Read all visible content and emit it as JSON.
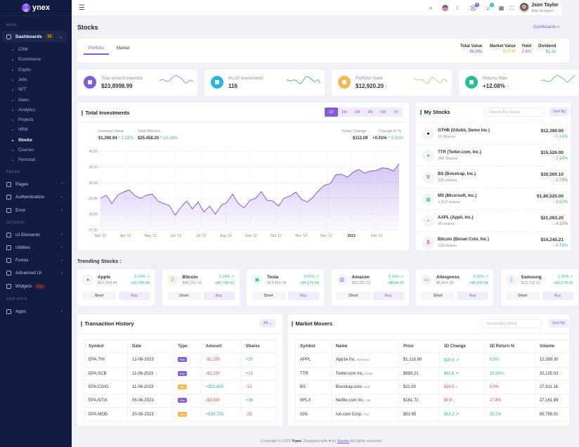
{
  "brand": {
    "name": "ynex"
  },
  "sidebar": {
    "sections": {
      "main": "MAIN",
      "pages": "PAGES",
      "general": "GENERAL",
      "webapps": "WEB APPS"
    },
    "dashboards": {
      "label": "Dashboards",
      "badge": "12"
    },
    "sub_items": [
      "CRM",
      "Ecommerce",
      "Crypto",
      "Jobs",
      "NFT",
      "Sales",
      "Analytics",
      "Projects",
      "HRM",
      "Stocks",
      "Courses",
      "Personal"
    ],
    "active_sub": "Stocks",
    "pages_items": [
      {
        "label": "Pages",
        "icon": "file-icon"
      },
      {
        "label": "Authentication",
        "icon": "fingerprint-icon"
      },
      {
        "label": "Error",
        "icon": "warning-icon"
      }
    ],
    "general_items": [
      {
        "label": "Ui Elements",
        "icon": "layout-icon"
      },
      {
        "label": "Utilities",
        "icon": "tools-icon"
      },
      {
        "label": "Forms",
        "icon": "form-icon"
      },
      {
        "label": "Advanced Ui",
        "icon": "layers-icon"
      },
      {
        "label": "Widgets",
        "icon": "gift-icon",
        "badge": "Hot"
      }
    ],
    "webapps_items": [
      {
        "label": "Apps",
        "icon": "grid-icon"
      }
    ]
  },
  "header": {
    "cart_count": "5",
    "notif_count": "5",
    "user": {
      "name": "Json Taylor",
      "role": "Web Designer"
    }
  },
  "page": {
    "title": "Stocks",
    "breadcrumb": "Dashboards"
  },
  "tabs": {
    "items": [
      "Portfolio",
      "Market"
    ],
    "active": "Portfolio"
  },
  "summary": [
    {
      "label": "Total Value",
      "value": "$8.89k",
      "color": "#845adf"
    },
    {
      "label": "Market Value",
      "value": "$15.9k",
      "color": "#f5b849"
    },
    {
      "label": "Yield",
      "value": "3.4%",
      "color": "#e6533c"
    },
    {
      "label": "Dividend",
      "value": "$1.3k",
      "color": "#23b7e5"
    }
  ],
  "stats": [
    {
      "label": "Total amount Invested",
      "value": "$23,8998.99",
      "color": "#845adf",
      "spark": "#a78bfa"
    },
    {
      "label": "No Of Investments",
      "value": "116",
      "color": "#23b7e5",
      "spark": "#4fb3c8"
    },
    {
      "label": "Portfolio Value",
      "value": "$12,920.20",
      "trend": "↑",
      "color": "#f5b849",
      "spark": "#e3c07a"
    },
    {
      "label": "Returns Rate",
      "value": "+12.08%",
      "trend": "↑",
      "color": "#26bf94",
      "spark": "#6cc4a7"
    }
  ],
  "investments": {
    "title": "Total Investments",
    "timeframes": [
      "1D",
      "1W",
      "1M",
      "3M",
      "6M",
      "1Y"
    ],
    "active_tf": "1D",
    "invested": {
      "label": "Invested Value",
      "value": "$1,290.94",
      "change": "^ 1.22%"
    },
    "returns": {
      "label": "Total Returns",
      "value": "$25,458.20",
      "change": "^ 10.14%"
    },
    "today": {
      "label": "Today Change",
      "value": "$112.09"
    },
    "pct": {
      "label": "Change In %",
      "value": "+0.01%",
      "change": "^ 0.21%"
    }
  },
  "chart_data": {
    "type": "area",
    "ylim": [
      27,
      42
    ],
    "yticks": [
      "27.00",
      "30.00",
      "33.00",
      "36.00",
      "39.00",
      "42.00"
    ],
    "xticks": [
      "Mar '12",
      "Apr '12",
      "May '12",
      "Jun '12",
      "Jul '12",
      "Aug '12",
      "Sep '12",
      "Oct '12",
      "Nov '12",
      "Dec '12",
      "2013",
      "Feb '13"
    ],
    "grid": true,
    "color": "#845adf",
    "x": [
      "2012-03-01",
      "2012-03-08",
      "2012-03-15",
      "2012-03-22",
      "2012-03-29",
      "2012-04-05",
      "2012-04-12",
      "2012-04-19",
      "2012-04-26",
      "2012-05-03",
      "2012-05-10",
      "2012-05-17",
      "2012-05-24",
      "2012-05-31",
      "2012-06-07",
      "2012-06-14",
      "2012-06-21",
      "2012-06-28",
      "2012-07-05",
      "2012-07-12",
      "2012-07-19",
      "2012-07-26",
      "2012-08-02",
      "2012-08-09",
      "2012-08-16",
      "2012-08-23",
      "2012-08-30",
      "2012-09-06",
      "2012-09-13",
      "2012-09-20",
      "2012-09-27",
      "2012-10-04",
      "2012-10-11",
      "2012-10-18",
      "2012-10-25",
      "2012-11-01",
      "2012-11-08",
      "2012-11-15",
      "2012-11-22",
      "2012-11-29",
      "2012-12-06",
      "2012-12-13",
      "2012-12-20",
      "2012-12-27",
      "2013-01-03",
      "2013-01-10",
      "2013-01-17",
      "2013-01-24",
      "2013-01-31",
      "2013-02-07",
      "2013-02-14",
      "2013-02-21",
      "2013-02-28"
    ],
    "y": [
      33.0,
      33.6,
      32.0,
      33.6,
      34.2,
      34.6,
      33.5,
      33.0,
      33.6,
      33.8,
      32.5,
      32.0,
      31.6,
      29.8,
      31.3,
      32.5,
      31.0,
      32.3,
      30.4,
      31.5,
      30.0,
      31.6,
      32.2,
      33.8,
      32.0,
      31.2,
      32.6,
      33.0,
      34.3,
      32.6,
      32.5,
      31.5,
      33.1,
      33.4,
      34.2,
      32.8,
      32.3,
      33.2,
      34.5,
      35.5,
      35.8,
      37.5,
      37.6,
      37.0,
      38.0,
      38.5,
      37.8,
      38.2,
      38.3,
      38.8,
      38.7,
      38.2,
      39.6
    ]
  },
  "my_stocks": {
    "title": "My Stocks",
    "search_placeholder": "Search Any Stock",
    "sort_label": "Sort By",
    "items": [
      {
        "name": "GTHB (Gituhb, Demo Inc.)",
        "shares": "16 Shares",
        "price": "$12,390.00",
        "change": "↑ 0.14%",
        "dir": "up",
        "icon": "github-icon",
        "glyph": "●",
        "color": "#111"
      },
      {
        "name": "TTR (Twiter.com, Inc.)",
        "shares": "289 Shares",
        "price": "$15,526.00",
        "change": "↑ 2.14%",
        "dir": "up",
        "icon": "twitter-icon",
        "glyph": "✦",
        "color": "#1da1f2"
      },
      {
        "name": "BS (Boostrap, Inc.)",
        "shares": "325 shares",
        "price": "$30,500.10",
        "change": "↓ 2.73%",
        "dir": "down",
        "icon": "bootstrap-icon",
        "glyph": "B",
        "color": "#7952b3"
      },
      {
        "name": "MS (Micorsoft, Inc.)",
        "shares": "1,523 shares",
        "price": "$1,80,520.00",
        "change": "↑ 8.63%",
        "dir": "up",
        "icon": "windows-icon",
        "glyph": "▦",
        "color": "#26bf94"
      },
      {
        "name": "AAPL (Appil, Inc.)",
        "shares": "30 shares",
        "price": "$21,093.20",
        "change": "↓ 4.10%",
        "dir": "down",
        "icon": "apple-icon",
        "glyph": "●",
        "color": "#f5b849"
      },
      {
        "name": "Bitcoin (Bioset Coin, Inc.)",
        "shares": "118 shares",
        "price": "$14,245.21",
        "change": "↑ 0.79%",
        "dir": "up",
        "icon": "bitcoin-icon",
        "glyph": "₿",
        "color": "#e6533c"
      }
    ]
  },
  "trending": {
    "title": "Trending Stocks :",
    "short_label": "Short",
    "buy_label": "Buy",
    "items": [
      {
        "name": "Apple",
        "price": "$12,289.44",
        "pct": "0.14% ↗",
        "change": "+$1,780.80",
        "icon": "apple-icon",
        "glyph": "●",
        "color": "#888"
      },
      {
        "name": "Bitcoin",
        "price": "$58,151.02",
        "pct": "2.14% ↗",
        "change": "+$5,745.62",
        "icon": "bitcoin-icon",
        "glyph": "₿",
        "color": "#f5b849"
      },
      {
        "name": "Tesla",
        "price": "$14,452.36",
        "pct": "4.02% ↗",
        "change": "+$4,125.63",
        "icon": "tesla-icon",
        "glyph": "▣",
        "color": "#26bf94"
      },
      {
        "name": "Amazon",
        "price": "$63,251.11",
        "pct": "5.14% ↗",
        "change": "+$936.30",
        "icon": "gift-icon",
        "glyph": "▥",
        "color": "#845adf"
      },
      {
        "name": "Aliexpress",
        "price": "$5,401.50",
        "pct": "3.32% ↗",
        "change": "+$4,360.65",
        "icon": "truck-icon",
        "glyph": "▭",
        "color": "#e6533c"
      },
      {
        "name": "Samsung",
        "price": "$10,732.12",
        "pct": "1.22% ↗",
        "change": "+$3,270.00",
        "icon": "phone-icon",
        "glyph": "▯",
        "color": "#23b7e5"
      }
    ]
  },
  "transactions": {
    "title": "Transaction History",
    "filter": "All",
    "columns": [
      "Symbol",
      "Date",
      "Type",
      "Amount",
      "Shares"
    ],
    "rows": [
      {
        "symbol": "EPA:THI",
        "date": "12-06-2023",
        "type": "Buy",
        "amount": "-$1,290",
        "shares": "+20"
      },
      {
        "symbol": "EPA:SCB",
        "date": "11-06-2023",
        "type": "Buy",
        "amount": "-$2,150",
        "shares": "+15"
      },
      {
        "symbol": "EPA:CGIO",
        "date": "11-06-2023",
        "type": "Sell",
        "amount": "+$22,625",
        "shares": "-12"
      },
      {
        "symbol": "EPA:NTIX",
        "date": "05-06-2023",
        "type": "Buy",
        "amount": "-$3,680",
        "shares": "+36"
      },
      {
        "symbol": "EPA:MOD",
        "date": "20-05-2023",
        "type": "Sell",
        "amount": "+$30,750",
        "shares": "-25"
      }
    ]
  },
  "movers": {
    "title": "Market Movers",
    "search_placeholder": "Search Any Stock",
    "sort_label": "Sort By",
    "columns": [
      "Symbol",
      "Name",
      "Price",
      "1D Change",
      "1D Return %",
      "Volume"
    ],
    "rows": [
      {
        "symbol": "APPL",
        "name": "App1e Inc.",
        "exchange": "NASDAQ",
        "price": "$1,116.90",
        "change": "$28.9 ↗",
        "ret": "6.8%",
        "volume": "12,389.30",
        "dir": "up"
      },
      {
        "symbol": "TTR",
        "name": "Twiter.com Inc.",
        "exchange": "NYSE",
        "price": "$993.21",
        "change": "$11.6 ↗",
        "ret": "10.25%",
        "volume": "32,125.03",
        "dir": "up"
      },
      {
        "symbol": "BS",
        "name": "Boostrap.com.",
        "exchange": "NSE",
        "price": "$11.00",
        "change": "$16.0 ↓",
        "ret": "9.0%",
        "volume": "27,911.16",
        "dir": "down"
      },
      {
        "symbol": "NFLX",
        "name": "Netflix.com Inc.",
        "exchange": "LSE",
        "price": "$161.72",
        "change": "$9.8 ↓",
        "ret": "17.8%",
        "volume": "27,161.89",
        "dir": "down"
      },
      {
        "symbol": "ION",
        "name": "Ion.com Corp.",
        "exchange": "FSX",
        "price": "$52.65",
        "change": "$14.2 ↗",
        "ret": "30.2%",
        "volume": "65,785.01",
        "dir": "up"
      }
    ]
  },
  "footer": {
    "prefix": "Copyright © 2023",
    "brand": "Ynex",
    "mid": ". Designed with",
    "by": "by",
    "author": "Spruko",
    "suffix": "All rights reserved"
  }
}
